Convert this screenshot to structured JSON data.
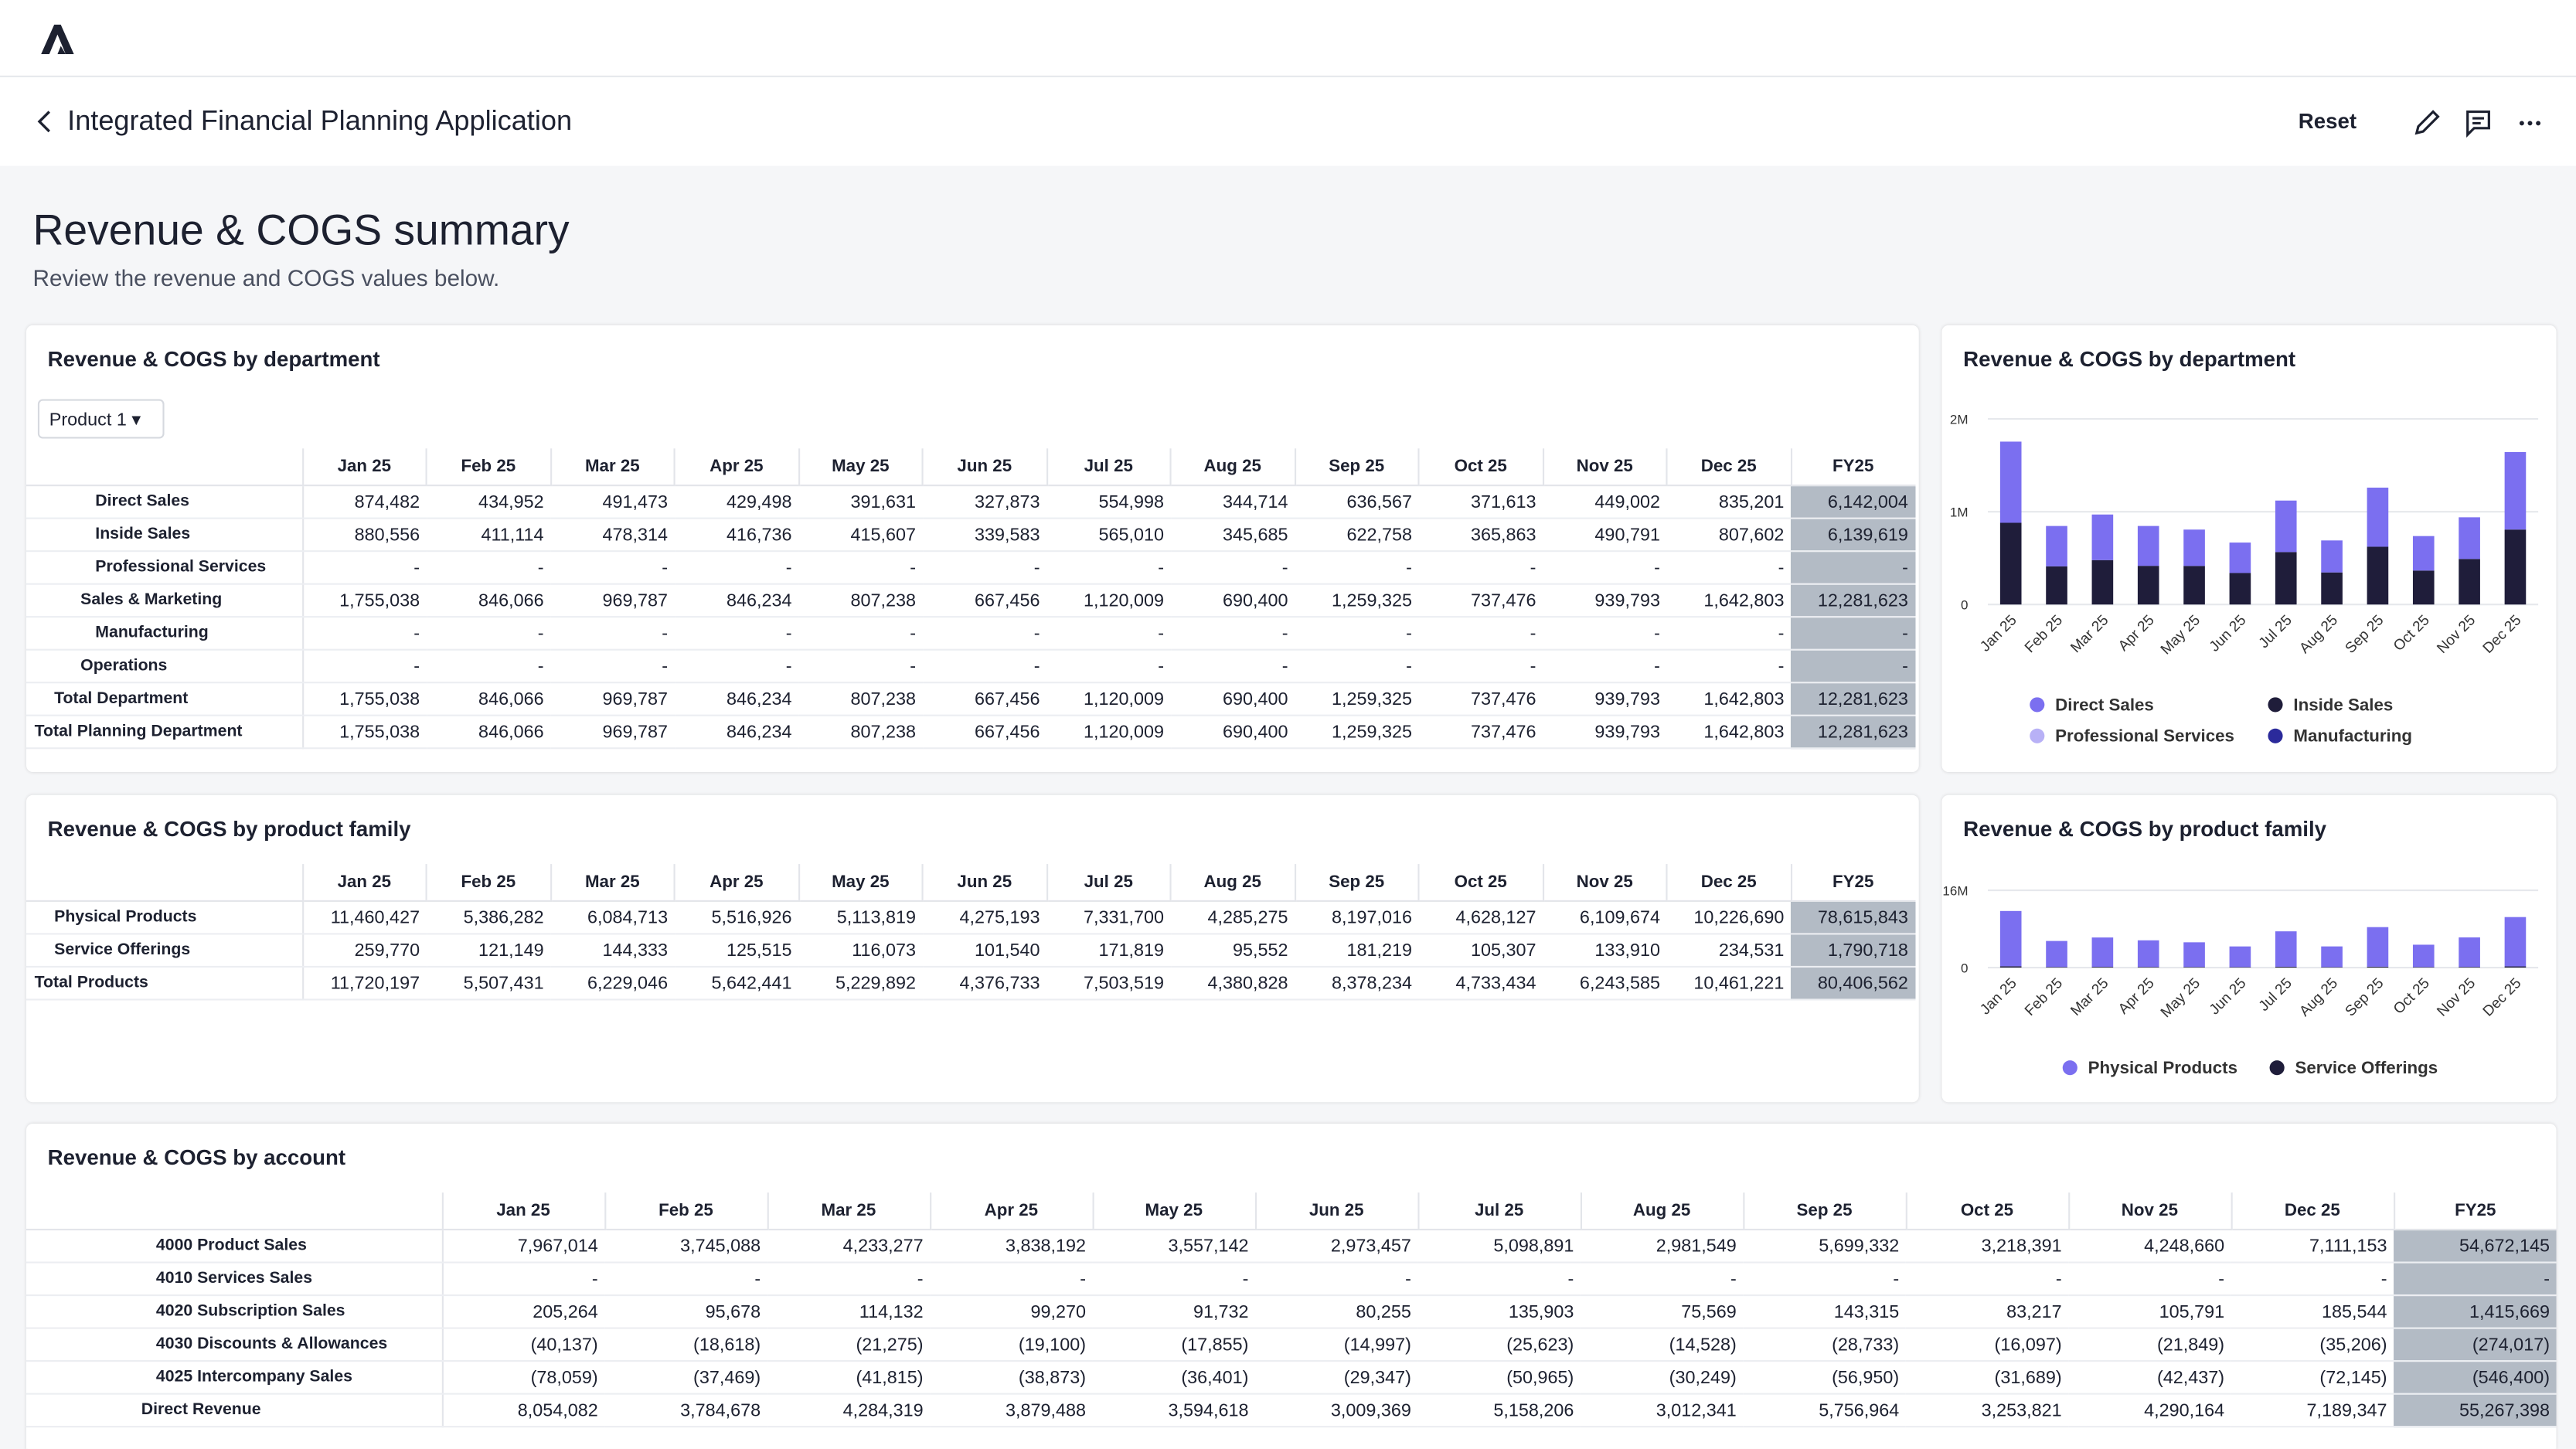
{
  "header": {
    "title": "Integrated Financial Planning Application",
    "actions": [
      "Reset"
    ]
  },
  "page": {
    "title": "Revenue & COGS summary",
    "subtitle": "Review the revenue and COGS values below."
  },
  "tables": [
    {
      "title": "Revenue & COGS by department",
      "filter": "Product 1",
      "columns": [
        "Jan 25",
        "Feb 25",
        "Mar 25",
        "Apr 25",
        "May 25",
        "Jun 25",
        "Jul 25",
        "Aug 25",
        "Sep 25",
        "Oct 25",
        "Nov 25",
        "Dec 25",
        "FY25"
      ],
      "rows": [
        {
          "label": "Direct Sales",
          "cells": [
            "874,482",
            "434,952",
            "491,473",
            "429,498",
            "391,631",
            "327,873",
            "554,998",
            "344,714",
            "636,567",
            "371,613",
            "449,002",
            "835,201",
            "6,142,004"
          ]
        },
        {
          "label": "Inside Sales",
          "cells": [
            "880,556",
            "411,114",
            "478,314",
            "416,736",
            "415,607",
            "339,583",
            "565,010",
            "345,685",
            "622,758",
            "365,863",
            "490,791",
            "807,602",
            "6,139,619"
          ]
        },
        {
          "label": "Professional Services",
          "cells": [
            "-",
            "-",
            "-",
            "-",
            "-",
            "-",
            "-",
            "-",
            "-",
            "-",
            "-",
            "-",
            "-"
          ]
        },
        {
          "label": "Sales & Marketing",
          "cells": [
            "1,755,038",
            "846,066",
            "969,787",
            "846,234",
            "807,238",
            "667,456",
            "1,120,009",
            "690,400",
            "1,259,325",
            "737,476",
            "939,793",
            "1,642,803",
            "12,281,623"
          ]
        },
        {
          "label": "Manufacturing",
          "cells": [
            "-",
            "-",
            "-",
            "-",
            "-",
            "-",
            "-",
            "-",
            "-",
            "-",
            "-",
            "-",
            "-"
          ]
        },
        {
          "label": "Operations",
          "cells": [
            "-",
            "-",
            "-",
            "-",
            "-",
            "-",
            "-",
            "-",
            "-",
            "-",
            "-",
            "-",
            "-"
          ]
        },
        {
          "label": "Total Department",
          "cells": [
            "1,755,038",
            "846,066",
            "969,787",
            "846,234",
            "807,238",
            "667,456",
            "1,120,009",
            "690,400",
            "1,259,325",
            "737,476",
            "939,793",
            "1,642,803",
            "12,281,623"
          ]
        },
        {
          "label": "Total Planning Department",
          "cells": [
            "1,755,038",
            "846,066",
            "969,787",
            "846,234",
            "807,238",
            "667,456",
            "1,120,009",
            "690,400",
            "1,259,325",
            "737,476",
            "939,793",
            "1,642,803",
            "12,281,623"
          ]
        }
      ]
    },
    {
      "title": "Revenue & COGS by product family",
      "columns": [
        "Jan 25",
        "Feb 25",
        "Mar 25",
        "Apr 25",
        "May 25",
        "Jun 25",
        "Jul 25",
        "Aug 25",
        "Sep 25",
        "Oct 25",
        "Nov 25",
        "Dec 25",
        "FY25"
      ],
      "rows": [
        {
          "label": "Physical Products",
          "cells": [
            "11,460,427",
            "5,386,282",
            "6,084,713",
            "5,516,926",
            "5,113,819",
            "4,275,193",
            "7,331,700",
            "4,285,275",
            "8,197,016",
            "4,628,127",
            "6,109,674",
            "10,226,690",
            "78,615,843"
          ]
        },
        {
          "label": "Service Offerings",
          "cells": [
            "259,770",
            "121,149",
            "144,333",
            "125,515",
            "116,073",
            "101,540",
            "171,819",
            "95,552",
            "181,219",
            "105,307",
            "133,910",
            "234,531",
            "1,790,718"
          ]
        },
        {
          "label": "Total Products",
          "cells": [
            "11,720,197",
            "5,507,431",
            "6,229,046",
            "5,642,441",
            "5,229,892",
            "4,376,733",
            "7,503,519",
            "4,380,828",
            "8,378,234",
            "4,733,434",
            "6,243,585",
            "10,461,221",
            "80,406,562"
          ]
        }
      ]
    },
    {
      "title": "Revenue & COGS by account",
      "columns": [
        "Jan 25",
        "Feb 25",
        "Mar 25",
        "Apr 25",
        "May 25",
        "Jun 25",
        "Jul 25",
        "Aug 25",
        "Sep 25",
        "Oct 25",
        "Nov 25",
        "Dec 25",
        "FY25"
      ],
      "rows": [
        {
          "label": "4000 Product Sales",
          "cells": [
            "7,967,014",
            "3,745,088",
            "4,233,277",
            "3,838,192",
            "3,557,142",
            "2,973,457",
            "5,098,891",
            "2,981,549",
            "5,699,332",
            "3,218,391",
            "4,248,660",
            "7,111,153",
            "54,672,145"
          ]
        },
        {
          "label": "4010 Services Sales",
          "cells": [
            "-",
            "-",
            "-",
            "-",
            "-",
            "-",
            "-",
            "-",
            "-",
            "-",
            "-",
            "-",
            "-"
          ]
        },
        {
          "label": "4020 Subscription Sales",
          "cells": [
            "205,264",
            "95,678",
            "114,132",
            "99,270",
            "91,732",
            "80,255",
            "135,903",
            "75,569",
            "143,315",
            "83,217",
            "105,791",
            "185,544",
            "1,415,669"
          ]
        },
        {
          "label": "4030 Discounts & Allowances",
          "cells": [
            "(40,137)",
            "(18,618)",
            "(21,275)",
            "(19,100)",
            "(17,855)",
            "(14,997)",
            "(25,623)",
            "(14,528)",
            "(28,733)",
            "(16,097)",
            "(21,849)",
            "(35,206)",
            "(274,017)"
          ]
        },
        {
          "label": "4025 Intercompany Sales",
          "cells": [
            "(78,059)",
            "(37,469)",
            "(41,815)",
            "(38,873)",
            "(36,401)",
            "(29,347)",
            "(50,965)",
            "(30,249)",
            "(56,950)",
            "(31,689)",
            "(42,437)",
            "(72,145)",
            "(546,400)"
          ]
        },
        {
          "label": "Direct Revenue",
          "cells": [
            "8,054,082",
            "3,784,678",
            "4,284,319",
            "3,879,488",
            "3,594,618",
            "3,009,369",
            "5,158,206",
            "3,012,341",
            "5,756,964",
            "3,253,821",
            "4,290,164",
            "7,189,347",
            "55,267,398"
          ]
        }
      ]
    }
  ],
  "chart_data": [
    {
      "type": "bar",
      "stacked": true,
      "title": "Revenue & COGS by department",
      "categories": [
        "Jan 25",
        "Feb 25",
        "Mar 25",
        "Apr 25",
        "May 25",
        "Jun 25",
        "Jul 25",
        "Aug 25",
        "Sep 25",
        "Oct 25",
        "Nov 25",
        "Dec 25"
      ],
      "ylim": [
        0,
        2000000
      ],
      "yticks": [
        0,
        {
          "value": 1000000,
          "label": "1M"
        },
        {
          "value": 2000000,
          "label": "2M"
        }
      ],
      "grid": true,
      "series": [
        {
          "name": "Direct Sales",
          "color": "#7b6ff0",
          "values": [
            874482,
            434952,
            491473,
            429498,
            391631,
            327873,
            554998,
            344714,
            636567,
            371613,
            449002,
            835201
          ]
        },
        {
          "name": "Inside Sales",
          "color": "#1f1d3a",
          "values": [
            880556,
            411114,
            478314,
            416736,
            415607,
            339583,
            565010,
            345685,
            622758,
            365863,
            490791,
            807602
          ]
        },
        {
          "name": "Professional Services",
          "color": "#b8b1f6",
          "values": [
            0,
            0,
            0,
            0,
            0,
            0,
            0,
            0,
            0,
            0,
            0,
            0
          ]
        },
        {
          "name": "Manufacturing",
          "color": "#2b2a9b",
          "values": [
            0,
            0,
            0,
            0,
            0,
            0,
            0,
            0,
            0,
            0,
            0,
            0
          ]
        }
      ]
    },
    {
      "type": "bar",
      "stacked": true,
      "title": "Revenue & COGS by product family",
      "categories": [
        "Jan 25",
        "Feb 25",
        "Mar 25",
        "Apr 25",
        "May 25",
        "Jun 25",
        "Jul 25",
        "Aug 25",
        "Sep 25",
        "Oct 25",
        "Nov 25",
        "Dec 25"
      ],
      "ylim": [
        0,
        16000000
      ],
      "yticks": [
        0,
        {
          "value": 16000000,
          "label": "16M"
        }
      ],
      "grid": true,
      "series": [
        {
          "name": "Physical Products",
          "color": "#7b6ff0",
          "values": [
            11460427,
            5386282,
            6084713,
            5516926,
            5113819,
            4275193,
            7331700,
            4285275,
            8197016,
            4628127,
            6109674,
            10226690
          ]
        },
        {
          "name": "Service Offerings",
          "color": "#1f1d3a",
          "values": [
            259770,
            121149,
            144333,
            125515,
            116073,
            101540,
            171819,
            95552,
            181219,
            105307,
            133910,
            234531
          ]
        }
      ]
    }
  ]
}
